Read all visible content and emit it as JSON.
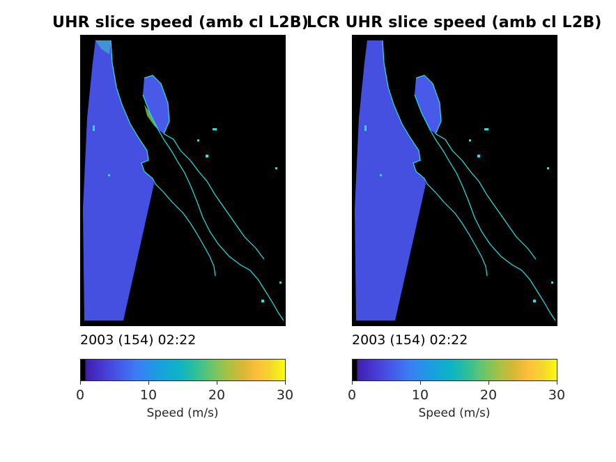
{
  "figure": {
    "left_panel": {
      "title": "UHR slice speed (amb cl L2B)",
      "timestamp": "2003 (154) 02:22",
      "colorbar": {
        "ticks": [
          "0",
          "10",
          "20",
          "30"
        ],
        "label": "Speed (m/s)",
        "range": [
          0,
          30
        ],
        "colormap": "parula"
      }
    },
    "right_panel": {
      "title": "LCR UHR slice speed (amb cl L2B)",
      "timestamp": "2003 (154) 02:22",
      "colorbar": {
        "ticks": [
          "0",
          "10",
          "20",
          "30"
        ],
        "label": "Speed (m/s)",
        "range": [
          0,
          30
        ],
        "colormap": "parula"
      }
    },
    "colors": {
      "background_land": "#000000",
      "ocean_wind": "#4650e0",
      "coastline": "#18e8e8"
    }
  }
}
